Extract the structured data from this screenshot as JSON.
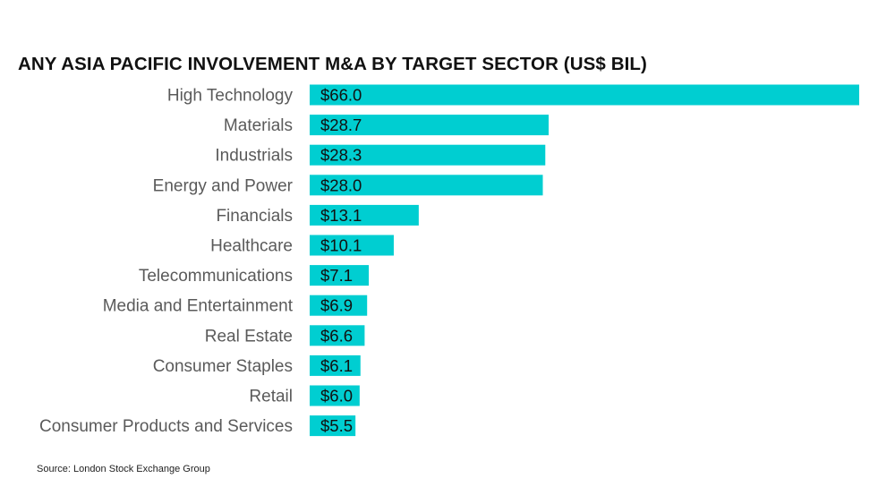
{
  "chart_data": {
    "type": "bar",
    "orientation": "horizontal",
    "title": "ANY ASIA PACIFIC INVOLVEMENT M&A BY TARGET SECTOR (US$ BIL)",
    "categories": [
      "High Technology",
      "Materials",
      "Industrials",
      "Energy and Power",
      "Financials",
      "Healthcare",
      "Telecommunications",
      "Media and Entertainment",
      "Real Estate",
      "Consumer Staples",
      "Retail",
      "Consumer Products and Services"
    ],
    "values": [
      66.0,
      28.7,
      28.3,
      28.0,
      13.1,
      10.1,
      7.1,
      6.9,
      6.6,
      6.1,
      6.0,
      5.5
    ],
    "data_labels": [
      "$66.0",
      "$28.7",
      "$28.3",
      "$28.0",
      "$13.1",
      "$10.1",
      "$7.1",
      "$6.9",
      "$6.6",
      "$6.1",
      "$6.0",
      "$5.5"
    ],
    "xlim": [
      0,
      66
    ],
    "grid": false,
    "legend": "none",
    "bar_color": "#00CED1"
  },
  "source": "Source: London Stock Exchange Group"
}
